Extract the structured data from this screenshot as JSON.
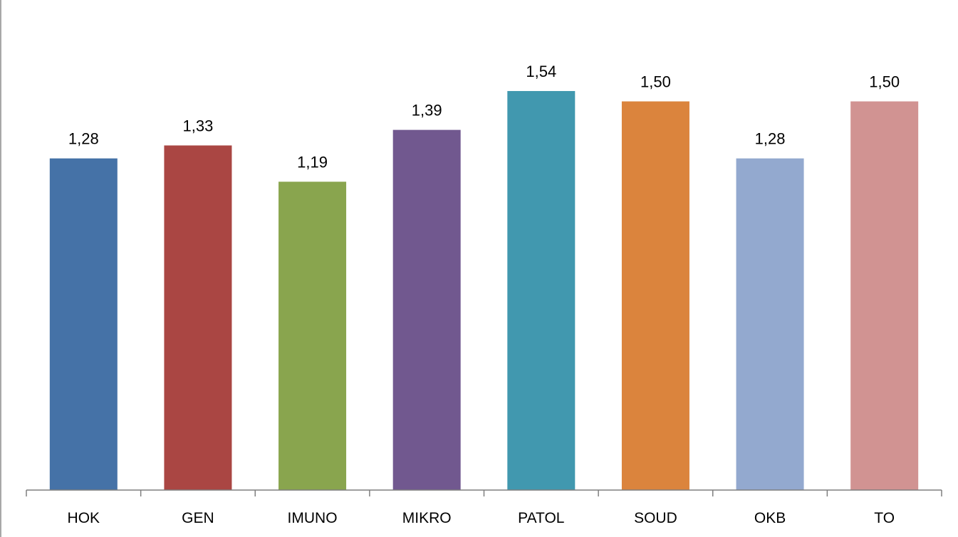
{
  "chart_data": {
    "type": "bar",
    "title": "",
    "xlabel": "",
    "ylabel": "",
    "categories": [
      "HOK",
      "GEN",
      "IMUNO",
      "MIKRO",
      "PATOL",
      "SOUD",
      "OKB",
      "TO"
    ],
    "values": [
      1.28,
      1.33,
      1.19,
      1.39,
      1.54,
      1.5,
      1.28,
      1.5
    ],
    "value_labels": [
      "1,28",
      "1,33",
      "1,19",
      "1,39",
      "1,54",
      "1,50",
      "1,28",
      "1,50"
    ],
    "colors": [
      "#4572A7",
      "#AA4643",
      "#89A54E",
      "#71588F",
      "#4198AF",
      "#DB843D",
      "#93A9CF",
      "#D19392"
    ],
    "ylim": [
      0,
      1.75
    ],
    "grid": false,
    "legend": "none"
  }
}
